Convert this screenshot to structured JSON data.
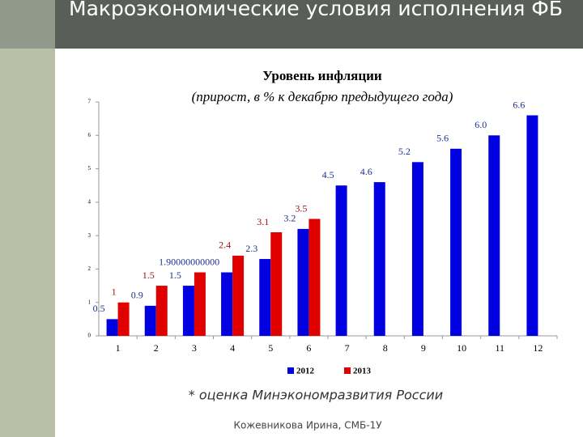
{
  "slide_title": "Макроэкономические условия исполнения ФБ",
  "footnote": "* оценка Минэкономразвития России",
  "author": "Кожевникова Ирина, СМБ-1У",
  "chart_data": {
    "type": "bar",
    "title": "Уровень инфляции",
    "subtitle": "(прирост, в % к декабрю предыдущего года)",
    "categories": [
      "1",
      "2",
      "3",
      "4",
      "5",
      "6",
      "7",
      "8",
      "9",
      "10",
      "11",
      "12"
    ],
    "series": [
      {
        "name": "2012",
        "color": "#0000e0",
        "label_color": "#1f2f8f",
        "values": [
          0.5,
          0.9,
          1.5,
          1.9,
          2.3,
          3.2,
          4.5,
          4.6,
          5.2,
          5.6,
          6.0,
          6.6
        ],
        "value_labels": [
          "0.5",
          "0.9",
          "1.5",
          "1.90000000000",
          "2.3",
          "3.2",
          "4.5",
          "4.6",
          "5.2",
          "5.6",
          "6.0",
          "6.6"
        ]
      },
      {
        "name": "2013",
        "color": "#e00000",
        "label_color": "#a01010",
        "values": [
          1,
          1.5,
          1.9,
          2.4,
          3.1,
          3.5,
          null,
          null,
          null,
          null,
          null,
          null
        ],
        "value_labels": [
          "1",
          "1.5",
          null,
          "2.4",
          "3.1",
          "3.5",
          null,
          null,
          null,
          null,
          null,
          null
        ]
      }
    ],
    "ylim": [
      0,
      7
    ],
    "yticks": [
      0,
      1,
      2,
      3,
      4,
      5,
      6,
      7
    ],
    "legend": "bottom"
  }
}
